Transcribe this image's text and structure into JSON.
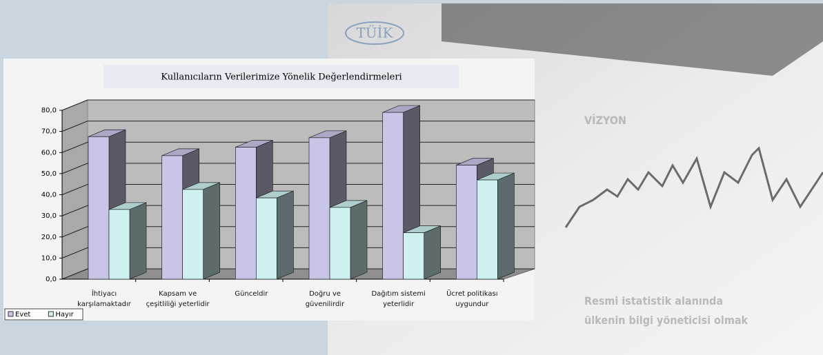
{
  "logo": "TÜİK",
  "heading": "VİZYON",
  "tagline": [
    "Resmi istatistik alanında",
    "ülkenin bilgi yöneticisi olmak"
  ],
  "chart_data": {
    "type": "bar3d",
    "title": "Kullanıcıların Verilerimize Yönelik Değerlendirmeleri",
    "categories": [
      "İhtiyacı\nkarşılamaktadır",
      "Kapsam ve\nçeşitliliği yeterlidir",
      "Günceldir",
      "Doğru ve\ngüvenilirdir",
      "Dağıtım sistemi\nyeterlidir",
      "Ücret politikası\nuygundur"
    ],
    "series": [
      {
        "name": "Evet",
        "color": "#c9c5e8",
        "values": [
          67.5,
          58.5,
          62.5,
          67,
          79,
          54
        ]
      },
      {
        "name": "Hayır",
        "color": "#cdf1f1",
        "values": [
          33,
          42.5,
          38.5,
          34,
          22,
          47
        ]
      }
    ],
    "ylim": [
      0,
      80
    ],
    "yticks": [
      {
        "value": 0,
        "label": "0,0"
      },
      {
        "value": 10,
        "label": "10,0"
      },
      {
        "value": 20,
        "label": "20,0"
      },
      {
        "value": 30,
        "label": "30,0"
      },
      {
        "value": 40,
        "label": "40,0"
      },
      {
        "value": 50,
        "label": "50,0"
      },
      {
        "value": 60,
        "label": "60,0"
      },
      {
        "value": 70,
        "label": "70,0"
      },
      {
        "value": 80,
        "label": "80,0"
      }
    ],
    "grid": true,
    "legend": "bottom-left"
  }
}
